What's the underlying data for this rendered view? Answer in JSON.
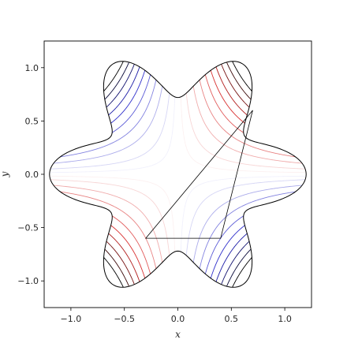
{
  "chart_data": {
    "type": "contour",
    "title": "",
    "xlabel": "x",
    "ylabel": "y",
    "xlim": [
      -1.25,
      1.25
    ],
    "ylim": [
      -1.25,
      1.25
    ],
    "xticks": [
      -1.0,
      -0.5,
      0.0,
      0.5,
      1.0
    ],
    "yticks": [
      -1.0,
      -0.5,
      0.0,
      0.5,
      1.0
    ],
    "xtick_labels": [
      "−1.0",
      "−0.5",
      "0.0",
      "0.5",
      "1.0"
    ],
    "ytick_labels": [
      "−1.0",
      "−0.5",
      "0.0",
      "0.5",
      "1.0"
    ],
    "grid": false,
    "legend": "none",
    "boundary": {
      "shape": "six-lobed star",
      "mean_radius": 0.96,
      "lobe_amplitude": 0.24,
      "lobes": 6,
      "color": "#000000"
    },
    "contour_field": "x*y",
    "contour_levels": [
      -0.54,
      -0.48,
      -0.42,
      -0.36,
      -0.3,
      -0.24,
      -0.18,
      -0.12,
      -0.06,
      -0.02,
      0.02,
      0.06,
      0.12,
      0.18,
      0.24,
      0.3,
      0.36,
      0.42,
      0.48,
      0.54
    ],
    "colormap": "seismic",
    "colors": {
      "positive": "#d62020",
      "negative": "#2020c8",
      "extreme": "#000000",
      "neutral": "#ffffff"
    },
    "triangle": {
      "vertices": [
        [
          -0.3,
          -0.6
        ],
        [
          0.4,
          -0.6
        ],
        [
          0.7,
          0.6
        ]
      ],
      "color": "#000000"
    }
  }
}
